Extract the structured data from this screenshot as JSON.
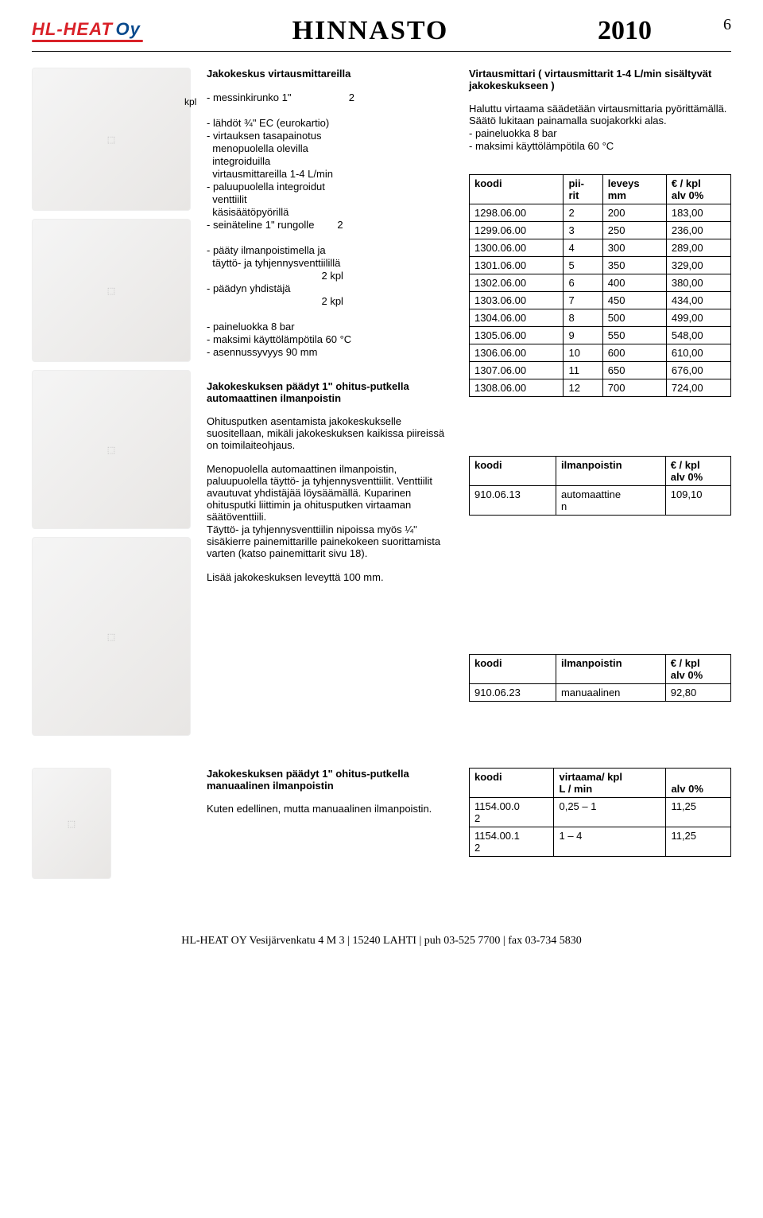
{
  "header": {
    "logo_main": "HL-HEAT",
    "logo_suffix": "Oy",
    "title": "HINNASTO",
    "year": "2010",
    "page": "6"
  },
  "section1": {
    "title": "Jakokeskus virtausmittareilla",
    "kpl1": "kpl",
    "kpl2": "kpl",
    "lines": [
      "- messinkirunko 1\"                    2",
      "",
      "- lähdöt ¾\" EC (eurokartio)",
      "- virtauksen tasapainotus",
      "  menopuolella olevilla",
      "  integroiduilla",
      "  virtausmittareilla 1-4 L/min",
      "- paluupuolella integroidut",
      "  venttiilit",
      "  käsisäätöpyörillä",
      "- seinäteline 1\" rungolle        2",
      "",
      "- pääty ilmanpoistimella ja",
      "  täyttö- ja tyhjennysventtiilillä",
      "                                        2 kpl",
      "- päädyn yhdistäjä",
      "                                        2 kpl",
      "",
      "- paineluokka 8 bar",
      "- maksimi käyttölämpötila 60 °C",
      "- asennussyvyys 90 mm"
    ]
  },
  "section2": {
    "title": "Jakokeskuksen päädyt 1\" ohitus-putkella automaattinen ilmanpoistin",
    "para1": "Ohitusputken asentamista jakokeskukselle suositellaan, mikäli jakokeskuksen kaikissa piireissä on toimilaiteohjaus.",
    "para2": "Menopuolella automaattinen ilmanpoistin, paluupuolella täyttö- ja tyhjennysventtiilit. Venttiilit avautuvat yhdistäjää löysäämällä. Kuparinen ohitusputki liittimin ja ohitusputken virtaaman säätöventtiili.",
    "para3": "Täyttö- ja tyhjennysventtiilin nipoissa myös ¼\" sisäkierre painemittarille painekokeen suorittamista varten (katso painemittarit sivu 18).",
    "para4": "Lisää jakokeskuksen leveyttä 100 mm."
  },
  "rightcol": {
    "title": "Virtausmittari ( virtausmittarit 1-4 L/min sisältyvät jakokeskukseen )",
    "lines": [
      "Haluttu virtaama säädetään virtausmittaria pyörittämällä. Säätö lukitaan painamalla suojakorkki alas.",
      "- paineluokka 8 bar",
      "- maksimi käyttölämpötila 60 °C"
    ]
  },
  "table1": {
    "headers": [
      "koodi",
      "pii-\nrit",
      "leveys\nmm",
      "€ / kpl\nalv 0%"
    ],
    "rows": [
      [
        "1298.06.00",
        "2",
        "200",
        "183,00"
      ],
      [
        "1299.06.00",
        "3",
        "250",
        "236,00"
      ],
      [
        "1300.06.00",
        "4",
        "300",
        "289,00"
      ],
      [
        "1301.06.00",
        "5",
        "350",
        "329,00"
      ],
      [
        "1302.06.00",
        "6",
        "400",
        "380,00"
      ],
      [
        "1303.06.00",
        "7",
        "450",
        "434,00"
      ],
      [
        "1304.06.00",
        "8",
        "500",
        "499,00"
      ],
      [
        "1305.06.00",
        "9",
        "550",
        "548,00"
      ],
      [
        "1306.06.00",
        "10",
        "600",
        "610,00"
      ],
      [
        "1307.06.00",
        "11",
        "650",
        "676,00"
      ],
      [
        "1308.06.00",
        "12",
        "700",
        "724,00"
      ]
    ]
  },
  "table2": {
    "headers": [
      "koodi",
      "ilmanpoistin",
      "€ / kpl\nalv 0%"
    ],
    "rows": [
      [
        "910.06.13",
        "automaattine\nn",
        "109,10"
      ]
    ]
  },
  "table3": {
    "headers": [
      "koodi",
      "ilmanpoistin",
      "€ / kpl\nalv 0%"
    ],
    "rows": [
      [
        "910.06.23",
        "manuaalinen",
        "92,80"
      ]
    ]
  },
  "section3": {
    "title": "Jakokeskuksen päädyt 1\" ohitus-putkella manuaalinen ilmanpoistin",
    "para": "Kuten edellinen, mutta manuaalinen ilmanpoistin."
  },
  "table4": {
    "headers": [
      "koodi",
      "virtaama/ kpl\nL / min",
      "\nalv 0%"
    ],
    "rows": [
      [
        "1154.00.0\n2",
        "0,25 – 1",
        "11,25"
      ],
      [
        "1154.00.1\n2",
        "1 – 4",
        "11,25"
      ]
    ]
  },
  "footer": "HL-HEAT OY Vesijärvenkatu 4 M 3 | 15240 LAHTI | puh 03-525 7700 | fax 03-734 5830"
}
